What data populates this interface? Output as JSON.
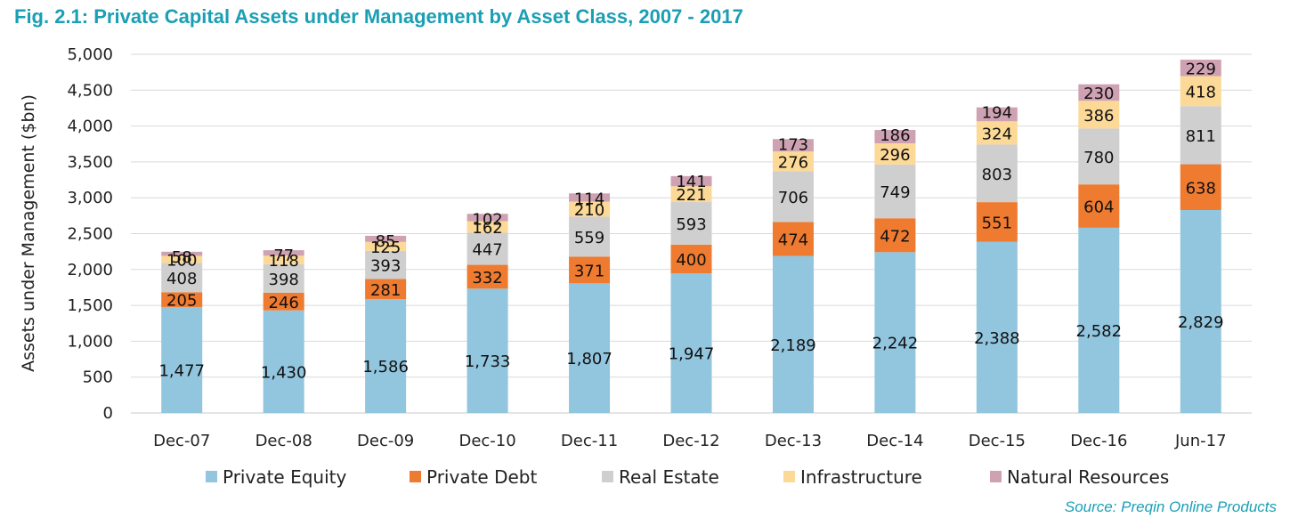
{
  "title": "Fig. 2.1: Private Capital Assets under Management by Asset Class, 2007 - 2017",
  "source": "Source: Preqin Online Products",
  "chart_data": {
    "type": "bar",
    "stacked": true,
    "ylabel": "Assets under Management ($bn)",
    "xlabel": "",
    "ylim": [
      0,
      5000
    ],
    "yticks": [
      0,
      500,
      1000,
      1500,
      2000,
      2500,
      3000,
      3500,
      4000,
      4500,
      5000
    ],
    "ytick_labels": [
      "0",
      "500",
      "1,000",
      "1,500",
      "2,000",
      "2,500",
      "3,000",
      "3,500",
      "4,000",
      "4,500",
      "5,000"
    ],
    "grid": true,
    "legend_position": "bottom",
    "categories": [
      "Dec-07",
      "Dec-08",
      "Dec-09",
      "Dec-10",
      "Dec-11",
      "Dec-12",
      "Dec-13",
      "Dec-14",
      "Dec-15",
      "Dec-16",
      "Jun-17"
    ],
    "series": [
      {
        "name": "Private Equity",
        "color": "#92c5de",
        "values": [
          1477,
          1430,
          1586,
          1733,
          1807,
          1947,
          2189,
          2242,
          2388,
          2582,
          2829
        ],
        "labels": [
          "1,477",
          "1,430",
          "1,586",
          "1,733",
          "1,807",
          "1,947",
          "2,189",
          "2,242",
          "2,388",
          "2,582",
          "2,829"
        ]
      },
      {
        "name": "Private Debt",
        "color": "#ee7b30",
        "values": [
          205,
          246,
          281,
          332,
          371,
          400,
          474,
          472,
          551,
          604,
          638
        ],
        "labels": [
          "205",
          "246",
          "281",
          "332",
          "371",
          "400",
          "474",
          "472",
          "551",
          "604",
          "638"
        ]
      },
      {
        "name": "Real Estate",
        "color": "#cfcfcf",
        "values": [
          408,
          398,
          393,
          447,
          559,
          593,
          706,
          749,
          803,
          780,
          811
        ],
        "labels": [
          "408",
          "398",
          "393",
          "447",
          "559",
          "593",
          "706",
          "749",
          "803",
          "780",
          "811"
        ]
      },
      {
        "name": "Infrastructure",
        "color": "#fcd996",
        "values": [
          100,
          118,
          125,
          162,
          210,
          221,
          276,
          296,
          324,
          386,
          418
        ],
        "labels": [
          "100",
          "118",
          "125",
          "162",
          "210",
          "221",
          "276",
          "296",
          "324",
          "386",
          "418"
        ]
      },
      {
        "name": "Natural Resources",
        "color": "#cfa2b3",
        "values": [
          58,
          77,
          85,
          102,
          114,
          141,
          173,
          186,
          194,
          230,
          229
        ],
        "labels": [
          "58",
          "77",
          "85",
          "102",
          "114",
          "141",
          "173",
          "186",
          "194",
          "230",
          "229"
        ]
      }
    ]
  }
}
